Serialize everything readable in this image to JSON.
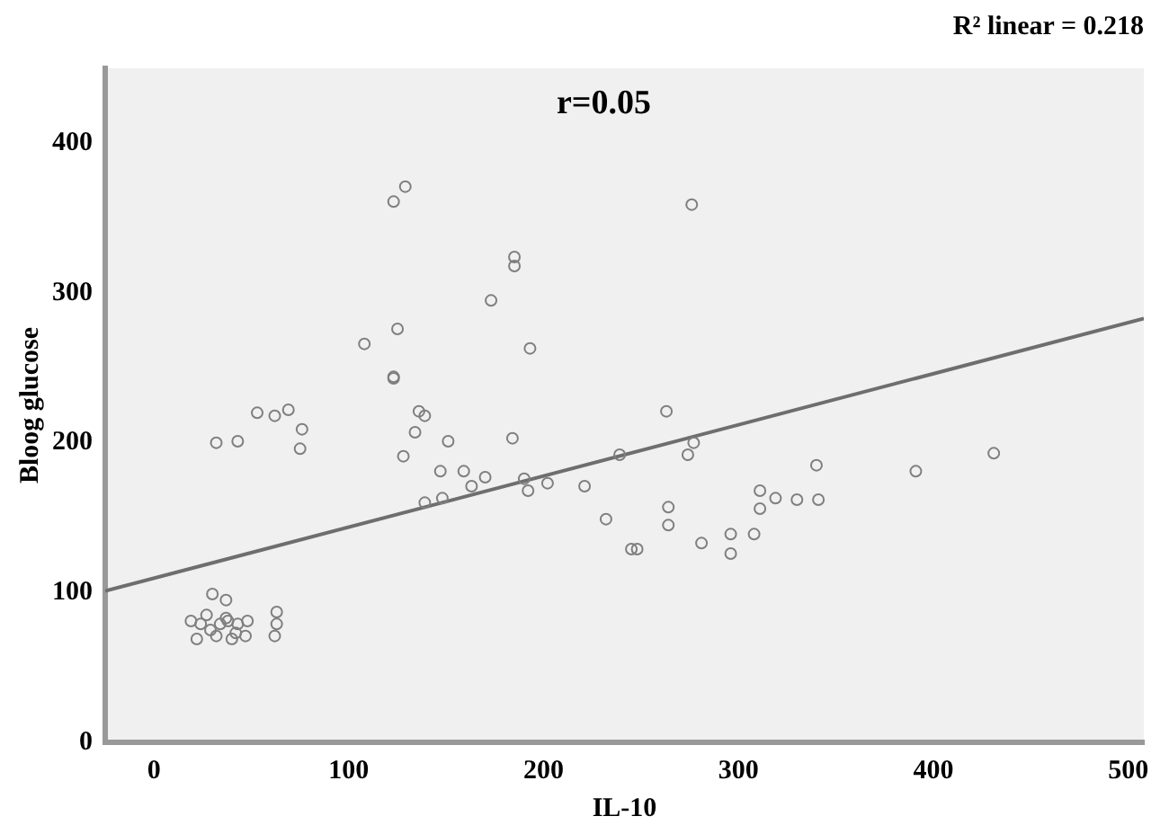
{
  "chart_data": {
    "type": "scatter",
    "title": "R² linear = 0.218",
    "xlabel": "IL-10",
    "ylabel": "Bloog glucose",
    "annotations": [
      "r=0.05"
    ],
    "xlim": [
      -25,
      508
    ],
    "ylim": [
      0,
      450
    ],
    "xticks": [
      0,
      100,
      200,
      300,
      400,
      500
    ],
    "yticks": [
      0,
      100,
      200,
      300,
      400
    ],
    "grid": false,
    "legend": false,
    "series": [
      {
        "marker": "circle",
        "color": "#7f7f7f",
        "x": [
          129,
          123,
          185,
          185,
          173,
          125,
          108,
          193,
          123,
          276,
          123,
          53,
          62,
          69,
          76,
          75,
          32,
          43,
          136,
          139,
          134,
          151,
          128,
          184,
          147,
          159,
          170,
          163,
          190,
          192,
          202,
          139,
          148,
          221,
          232,
          239,
          245,
          30,
          37,
          19,
          24,
          29,
          34,
          38,
          43,
          47,
          22,
          32,
          40,
          27,
          37,
          48,
          42,
          63,
          63,
          62,
          263,
          277,
          274,
          248,
          264,
          264,
          281,
          296,
          308,
          296,
          311,
          311,
          319,
          330,
          341,
          340,
          391,
          431
        ],
        "values": [
          371,
          361,
          324,
          318,
          295,
          276,
          266,
          263,
          243,
          359,
          244,
          220,
          218,
          222,
          209,
          196,
          200,
          201,
          221,
          218,
          207,
          201,
          191,
          203,
          181,
          181,
          177,
          171,
          176,
          168,
          173,
          160,
          163,
          171,
          149,
          192,
          129,
          99,
          95,
          81,
          79,
          75,
          79,
          81,
          79,
          71,
          69,
          71,
          69,
          85,
          83,
          81,
          73,
          87,
          79,
          71,
          221,
          200,
          192,
          129,
          157,
          145,
          133,
          139,
          139,
          126,
          168,
          156,
          163,
          162,
          162,
          185,
          181,
          193
        ]
      },
      {
        "type": "line",
        "marker": "none",
        "color": "#6e6e6e",
        "x": [
          -25,
          508
        ],
        "values": [
          101,
          283
        ]
      }
    ]
  }
}
